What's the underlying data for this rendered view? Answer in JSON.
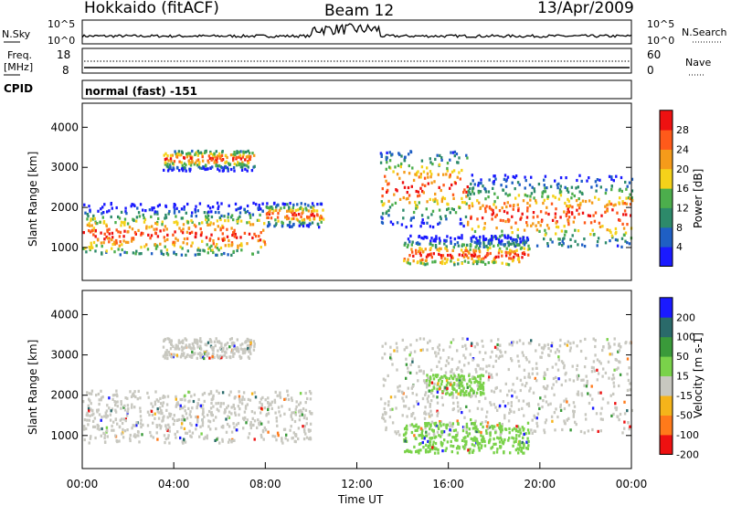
{
  "header": {
    "station": "Hokkaido (fitACF)",
    "beam": "Beam 12",
    "date": "13/Apr/2009"
  },
  "noise_panel": {
    "left_label": "N.Sky",
    "right_label": "N.Search",
    "left_ticks": [
      "10^5",
      "10^0"
    ],
    "right_ticks": [
      "10^5",
      "10^0"
    ]
  },
  "freq_panel": {
    "left_label_line1": "Freq.",
    "left_label_line2": "[MHz]",
    "left_ticks": [
      "18",
      "8"
    ],
    "right_label": "Nave",
    "right_ticks": [
      "60",
      "0"
    ]
  },
  "cpid": {
    "label": "CPID",
    "value": "normal (fast) -151"
  },
  "chart_data": [
    {
      "type": "heatmap",
      "title": "",
      "quantity": "Power",
      "ylabel": "Slant Range [km]",
      "ylim": [
        180,
        4600
      ],
      "y_ticks": [
        "1000",
        "2000",
        "3000",
        "4000"
      ],
      "colorbar_label": "Power [dB]",
      "colorbar_ticks": [
        "4",
        "8",
        "12",
        "16",
        "20",
        "24",
        "28"
      ],
      "colors": [
        "#1a1aff",
        "#1f5fc4",
        "#2d8a6a",
        "#4cae4c",
        "#f5d21a",
        "#f59b1a",
        "#ff5a1a",
        "#ee1111"
      ],
      "regions": [
        {
          "t0": 0.0,
          "t1": 8.0,
          "r0": 800,
          "r1": 2100,
          "peak": 1300
        },
        {
          "t0": 3.5,
          "t1": 7.5,
          "r0": 2900,
          "r1": 3400,
          "peak": 3200
        },
        {
          "t0": 8.0,
          "t1": 10.5,
          "r0": 1500,
          "r1": 2100,
          "peak": 1800
        },
        {
          "t0": 13.0,
          "t1": 16.8,
          "r0": 1500,
          "r1": 3400,
          "peak": 2500
        },
        {
          "t0": 16.8,
          "t1": 24.0,
          "r0": 1000,
          "r1": 2800,
          "peak": 1800
        },
        {
          "t0": 14.0,
          "t1": 19.5,
          "r0": 550,
          "r1": 1300,
          "peak": 800
        }
      ]
    },
    {
      "type": "heatmap",
      "title": "",
      "quantity": "Velocity",
      "xlabel": "Time UT",
      "ylabel": "Slant Range [km]",
      "ylim": [
        180,
        4600
      ],
      "y_ticks": [
        "1000",
        "2000",
        "3000",
        "4000"
      ],
      "x_ticks": [
        "00:00",
        "04:00",
        "08:00",
        "12:00",
        "16:00",
        "20:00",
        "00:00"
      ],
      "colorbar_label": "Velocity [m s-1]",
      "colorbar_ticks": [
        "200",
        "100",
        "50",
        "15",
        "-15",
        "-50",
        "-100",
        "-200"
      ],
      "colors": [
        "#1a1aff",
        "#2a6a6a",
        "#3a9a3a",
        "#7ad24a",
        "#c8c8c0",
        "#f5b41a",
        "#ff7a1a",
        "#ee1111"
      ],
      "regions": [
        {
          "t0": 0.0,
          "t1": 10.0,
          "r0": 800,
          "r1": 2100,
          "color": 4
        },
        {
          "t0": 3.5,
          "t1": 7.5,
          "r0": 2900,
          "r1": 3400,
          "color": 4
        },
        {
          "t0": 13.0,
          "t1": 24.0,
          "r0": 1000,
          "r1": 3400,
          "color": 4
        },
        {
          "t0": 14.0,
          "t1": 19.5,
          "r0": 550,
          "r1": 1300,
          "color": 3
        },
        {
          "t0": 15.0,
          "t1": 17.5,
          "r0": 2000,
          "r1": 2500,
          "color": 3
        }
      ]
    }
  ]
}
